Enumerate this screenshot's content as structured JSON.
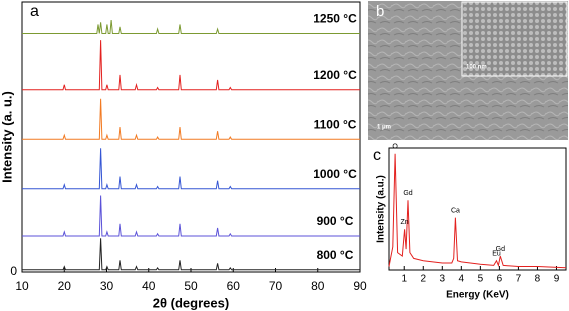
{
  "chart_data": [
    {
      "type": "line",
      "panel_label": "a",
      "xlabel": "2θ (degrees)",
      "ylabel": "Intensity (a. u.)",
      "xlim": [
        10,
        90
      ],
      "xticks": [
        10,
        20,
        30,
        40,
        50,
        60,
        70,
        80,
        90
      ],
      "ylim": [
        0,
        6
      ],
      "yticks": [
        0
      ],
      "x": [
        10,
        19.7,
        20,
        20.3,
        27.7,
        28,
        28.3,
        28.6,
        28.9,
        29.8,
        30.1,
        30.4,
        30.8,
        31.1,
        31.4,
        32.9,
        33.2,
        33.5,
        36.8,
        37.1,
        37.4,
        41.8,
        42.1,
        42.4,
        47.1,
        47.4,
        47.7,
        56,
        56.3,
        56.6,
        59,
        59.3,
        59.6,
        90
      ],
      "series": [
        {
          "name": "800 °C",
          "color": "#222222",
          "values": [
            0.05,
            0.05,
            0.12,
            0.05,
            0.05,
            0.05,
            0.05,
            0.75,
            0.05,
            0.05,
            0.12,
            0.05,
            0.05,
            0.05,
            0.05,
            0.05,
            0.26,
            0.05,
            0.05,
            0.12,
            0.05,
            0.05,
            0.09,
            0.05,
            0.05,
            0.26,
            0.05,
            0.05,
            0.19,
            0.05,
            0.05,
            0.09,
            0.05,
            0.05
          ]
        },
        {
          "name": "900 °C",
          "color": "#5b52d8",
          "values": [
            0.8,
            0.8,
            0.89,
            0.8,
            0.8,
            0.8,
            0.8,
            1.7,
            0.8,
            0.8,
            0.89,
            0.8,
            0.8,
            0.8,
            0.8,
            0.8,
            1.07,
            0.8,
            0.8,
            0.89,
            0.8,
            0.8,
            0.85,
            0.8,
            0.8,
            1.07,
            0.8,
            0.8,
            0.98,
            0.8,
            0.8,
            0.85,
            0.8,
            0.8
          ]
        },
        {
          "name": "1000 °C",
          "color": "#3556d4",
          "values": [
            1.85,
            1.85,
            1.94,
            1.85,
            1.85,
            1.85,
            1.85,
            2.75,
            1.85,
            1.85,
            1.94,
            1.85,
            1.85,
            1.85,
            1.85,
            1.85,
            2.12,
            1.85,
            1.85,
            1.94,
            1.85,
            1.85,
            1.9,
            1.85,
            1.85,
            2.12,
            1.85,
            1.85,
            2.03,
            1.85,
            1.85,
            1.9,
            1.85,
            1.85
          ]
        },
        {
          "name": "1100 °C",
          "color": "#f27a22",
          "values": [
            2.95,
            2.95,
            3.04,
            2.95,
            2.95,
            2.95,
            2.95,
            3.85,
            2.95,
            2.95,
            3.04,
            2.95,
            2.95,
            2.95,
            2.95,
            2.95,
            3.22,
            2.95,
            2.95,
            3.04,
            2.95,
            2.95,
            3.0,
            2.95,
            2.95,
            3.22,
            2.95,
            2.95,
            3.13,
            2.95,
            2.95,
            3.0,
            2.95,
            2.95
          ]
        },
        {
          "name": "1200 °C",
          "color": "#e3211f",
          "values": [
            4.05,
            4.05,
            4.16,
            4.05,
            4.05,
            4.05,
            4.05,
            5.15,
            4.05,
            4.05,
            4.16,
            4.05,
            4.05,
            4.05,
            4.05,
            4.05,
            4.38,
            4.05,
            4.05,
            4.16,
            4.05,
            4.05,
            4.1,
            4.05,
            4.05,
            4.38,
            4.05,
            4.05,
            4.27,
            4.05,
            4.05,
            4.1,
            4.05,
            4.05
          ]
        },
        {
          "name": "1250 °C",
          "color": "#7c9a32",
          "values": [
            5.3,
            5.3,
            5.3,
            5.3,
            5.3,
            5.5,
            5.3,
            5.55,
            5.3,
            5.3,
            5.5,
            5.3,
            5.3,
            5.6,
            5.3,
            5.3,
            5.45,
            5.3,
            5.3,
            5.3,
            5.3,
            5.3,
            5.4,
            5.3,
            5.3,
            5.5,
            5.3,
            5.3,
            5.4,
            5.3,
            5.3,
            5.3,
            5.3,
            5.3
          ]
        }
      ]
    },
    {
      "type": "line",
      "panel_label": "c",
      "xlabel": "Energy (KeV)",
      "ylabel": "Intensity (a.u.)",
      "xlim": [
        0.2,
        9.5
      ],
      "xticks": [
        1,
        2,
        3,
        4,
        5,
        6,
        7,
        8,
        9
      ],
      "ylim": [
        0,
        105
      ],
      "x": [
        0.2,
        0.4,
        0.52,
        0.65,
        0.9,
        1.02,
        1.1,
        1.2,
        1.3,
        1.5,
        2,
        2.5,
        3,
        3.5,
        3.6,
        3.69,
        3.8,
        4,
        5,
        5.7,
        5.85,
        5.95,
        6.05,
        6.2,
        7,
        8,
        9.5
      ],
      "series": [
        {
          "color": "#e3211f",
          "values": [
            3,
            20,
            100,
            15,
            12,
            35,
            18,
            60,
            15,
            10,
            8,
            7,
            6,
            6,
            10,
            45,
            8,
            7,
            5,
            4,
            8,
            4,
            12,
            4,
            3,
            3,
            2
          ]
        }
      ],
      "peak_labels": [
        "O",
        "Zn",
        "Gd",
        "Ca",
        "Eu",
        "Gd"
      ]
    }
  ],
  "image_panel": {
    "label": "b",
    "inset_scale": "100 nm",
    "scale": "1 μm"
  }
}
